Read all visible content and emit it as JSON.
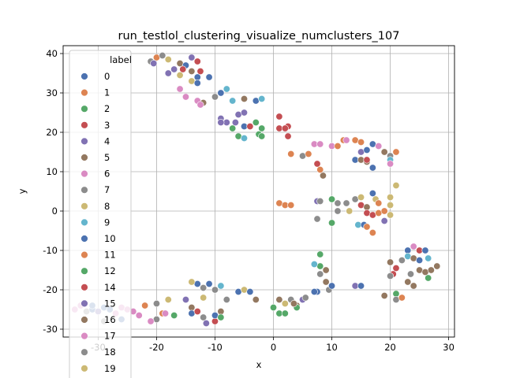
{
  "chart_data": {
    "type": "scatter",
    "title": "run_testlol_clustering_visualize_numclusters_107",
    "xlabel": "x",
    "ylabel": "y",
    "xlim": [
      -36,
      31
    ],
    "ylim": [
      -32,
      42
    ],
    "xticks": [
      -30,
      -20,
      -10,
      0,
      10,
      20,
      30
    ],
    "yticks": [
      -30,
      -20,
      -10,
      0,
      10,
      20,
      30,
      40
    ],
    "grid": true,
    "legend": {
      "title": "label",
      "placement": "upper-left",
      "entries": [
        {
          "label": "0",
          "color": "#4c72b0"
        },
        {
          "label": "1",
          "color": "#dd8452"
        },
        {
          "label": "2",
          "color": "#55a868"
        },
        {
          "label": "3",
          "color": "#c44e52"
        },
        {
          "label": "4",
          "color": "#8172b3"
        },
        {
          "label": "5",
          "color": "#937860"
        },
        {
          "label": "6",
          "color": "#da8bc3"
        },
        {
          "label": "7",
          "color": "#8c8c8c"
        },
        {
          "label": "8",
          "color": "#ccb974"
        },
        {
          "label": "9",
          "color": "#64b5cd"
        },
        {
          "label": "10",
          "color": "#4c72b0"
        },
        {
          "label": "11",
          "color": "#dd8452"
        },
        {
          "label": "12",
          "color": "#55a868"
        },
        {
          "label": "14",
          "color": "#c44e52"
        },
        {
          "label": "15",
          "color": "#8172b3"
        },
        {
          "label": "16",
          "color": "#937860"
        },
        {
          "label": "17",
          "color": "#da8bc3"
        },
        {
          "label": "18",
          "color": "#8c8c8c"
        },
        {
          "label": "19",
          "color": "#ccb974"
        }
      ]
    },
    "points": [
      [
        -20,
        39,
        "#dd8452"
      ],
      [
        -19,
        39.5,
        "#8c8c8c"
      ],
      [
        -21,
        38,
        "#8c8c8c"
      ],
      [
        -18,
        38.5,
        "#ccb974"
      ],
      [
        -16,
        37.5,
        "#937860"
      ],
      [
        -15,
        37,
        "#4c72b0"
      ],
      [
        -13,
        38,
        "#c44e52"
      ],
      [
        -14,
        39,
        "#8172b3"
      ],
      [
        -17,
        36,
        "#8172b3"
      ],
      [
        -15.5,
        36,
        "#c44e52"
      ],
      [
        -14,
        35.5,
        "#937860"
      ],
      [
        -12.5,
        35.5,
        "#c44e52"
      ],
      [
        -16,
        34.5,
        "#ccb974"
      ],
      [
        -13,
        34,
        "#4c72b0"
      ],
      [
        -11,
        34,
        "#4c72b0"
      ],
      [
        -14,
        33,
        "#ccb974"
      ],
      [
        -13,
        32.5,
        "#4c72b0"
      ],
      [
        -20.5,
        37.5,
        "#8172b3"
      ],
      [
        -18,
        35,
        "#8172b3"
      ],
      [
        -16,
        31,
        "#da8bc3"
      ],
      [
        -15,
        29,
        "#da8bc3"
      ],
      [
        -13,
        28,
        "#da8bc3"
      ],
      [
        -12,
        27.5,
        "#937860"
      ],
      [
        -12.5,
        27,
        "#da8bc3"
      ],
      [
        -10,
        29,
        "#8c8c8c"
      ],
      [
        -9,
        30,
        "#4c72b0"
      ],
      [
        -8,
        31,
        "#64b5cd"
      ],
      [
        -7,
        28,
        "#64b5cd"
      ],
      [
        -5,
        28.5,
        "#937860"
      ],
      [
        -3,
        28,
        "#4c72b0"
      ],
      [
        -2,
        28.5,
        "#64b5cd"
      ],
      [
        -9,
        23.5,
        "#8172b3"
      ],
      [
        -8,
        22.5,
        "#8172b3"
      ],
      [
        -9,
        22.5,
        "#8172b3"
      ],
      [
        -6,
        24.5,
        "#8172b3"
      ],
      [
        -5,
        25,
        "#8172b3"
      ],
      [
        -6.5,
        22.5,
        "#8172b3"
      ],
      [
        -7,
        21,
        "#55a868"
      ],
      [
        -5,
        21.5,
        "#4c72b0"
      ],
      [
        -4,
        21.5,
        "#c44e52"
      ],
      [
        -3,
        22.5,
        "#55a868"
      ],
      [
        -2,
        21,
        "#55a868"
      ],
      [
        -6,
        19,
        "#55a868"
      ],
      [
        -5,
        18.5,
        "#64b5cd"
      ],
      [
        -2.5,
        19.5,
        "#55a868"
      ],
      [
        -2,
        19,
        "#55a868"
      ],
      [
        1,
        24,
        "#c44e52"
      ],
      [
        2.5,
        21.5,
        "#c44e52"
      ],
      [
        1,
        21,
        "#c44e52"
      ],
      [
        2,
        21,
        "#c44e52"
      ],
      [
        2.5,
        19,
        "#c44e52"
      ],
      [
        3,
        14.5,
        "#dd8452"
      ],
      [
        5,
        14,
        "#8c8c8c"
      ],
      [
        6,
        14.5,
        "#dd8452"
      ],
      [
        7,
        17,
        "#da8bc3"
      ],
      [
        8,
        17,
        "#da8bc3"
      ],
      [
        7.5,
        12,
        "#c44e52"
      ],
      [
        8,
        10.5,
        "#dd8452"
      ],
      [
        8.5,
        9,
        "#937860"
      ],
      [
        10,
        16.5,
        "#da8bc3"
      ],
      [
        11,
        16.5,
        "#dd8452"
      ],
      [
        12,
        18,
        "#dd8452"
      ],
      [
        12.5,
        18,
        "#da8bc3"
      ],
      [
        14,
        18,
        "#dd8452"
      ],
      [
        15,
        17.5,
        "#dd8452"
      ],
      [
        15,
        15,
        "#8172b3"
      ],
      [
        16,
        15.5,
        "#4c72b0"
      ],
      [
        17,
        17,
        "#4c72b0"
      ],
      [
        18,
        16.5,
        "#da8bc3"
      ],
      [
        19,
        15,
        "#937860"
      ],
      [
        20,
        14,
        "#8c8c8c"
      ],
      [
        21,
        15,
        "#dd8452"
      ],
      [
        20,
        13,
        "#64b5cd"
      ],
      [
        20,
        12,
        "#da8bc3"
      ],
      [
        14,
        13,
        "#4c72b0"
      ],
      [
        15,
        13,
        "#937860"
      ],
      [
        16,
        12.5,
        "#937860"
      ],
      [
        17,
        11,
        "#4c72b0"
      ],
      [
        16,
        13,
        "#c44e52"
      ],
      [
        1,
        2,
        "#dd8452"
      ],
      [
        2,
        1.5,
        "#dd8452"
      ],
      [
        3,
        1.5,
        "#dd8452"
      ],
      [
        7.5,
        2.5,
        "#8172b3"
      ],
      [
        8,
        2.5,
        "#8c8c8c"
      ],
      [
        10,
        3,
        "#55a868"
      ],
      [
        11,
        2,
        "#8c8c8c"
      ],
      [
        12.5,
        2,
        "#8c8c8c"
      ],
      [
        11,
        0,
        "#8c8c8c"
      ],
      [
        13,
        0,
        "#ccb974"
      ],
      [
        14,
        3,
        "#8c8c8c"
      ],
      [
        15,
        3.5,
        "#ccb974"
      ],
      [
        15,
        1.5,
        "#c44e52"
      ],
      [
        16,
        1,
        "#937860"
      ],
      [
        16,
        -0.5,
        "#c44e52"
      ],
      [
        17,
        4.5,
        "#4c72b0"
      ],
      [
        17.5,
        3,
        "#ccb974"
      ],
      [
        18,
        2,
        "#dd8452"
      ],
      [
        17,
        -1,
        "#c44e52"
      ],
      [
        18,
        -0.5,
        "#dd8452"
      ],
      [
        19,
        0,
        "#dd8452"
      ],
      [
        20,
        1.5,
        "#ccb974"
      ],
      [
        20,
        3.5,
        "#ccb974"
      ],
      [
        21,
        6.5,
        "#ccb974"
      ],
      [
        20,
        -1,
        "#ccb974"
      ],
      [
        19,
        -2.5,
        "#8172b3"
      ],
      [
        10,
        -3,
        "#55a868"
      ],
      [
        7.5,
        -2,
        "#8c8c8c"
      ],
      [
        14.5,
        -3.5,
        "#64b5cd"
      ],
      [
        15.5,
        -3.5,
        "#4c72b0"
      ],
      [
        17,
        -5.5,
        "#dd8452"
      ],
      [
        16,
        -4,
        "#dd8452"
      ],
      [
        8,
        -11,
        "#55a868"
      ],
      [
        8,
        -14,
        "#55a868"
      ],
      [
        7,
        -13.5,
        "#64b5cd"
      ],
      [
        9,
        -15,
        "#937860"
      ],
      [
        8,
        -16,
        "#8c8c8c"
      ],
      [
        9,
        -18,
        "#937860"
      ],
      [
        7.5,
        -20.5,
        "#4c72b0"
      ],
      [
        9.5,
        -20,
        "#8c8c8c"
      ],
      [
        10,
        -19,
        "#4c72b0"
      ],
      [
        14,
        -19,
        "#8172b3"
      ],
      [
        15,
        -19,
        "#4c72b0"
      ],
      [
        23,
        -10,
        "#4c72b0"
      ],
      [
        24,
        -9,
        "#da8bc3"
      ],
      [
        25,
        -10,
        "#c44e52"
      ],
      [
        26,
        -10,
        "#4c72b0"
      ],
      [
        23,
        -11.5,
        "#64b5cd"
      ],
      [
        24,
        -12,
        "#937860"
      ],
      [
        25,
        -12.5,
        "#4c72b0"
      ],
      [
        26.5,
        -12,
        "#64b5cd"
      ],
      [
        22,
        -12.5,
        "#8c8c8c"
      ],
      [
        20,
        -13,
        "#937860"
      ],
      [
        21,
        -14.5,
        "#c44e52"
      ],
      [
        20.5,
        -16,
        "#c44e52"
      ],
      [
        20,
        -16.5,
        "#8c8c8c"
      ],
      [
        23.5,
        -16,
        "#8c8c8c"
      ],
      [
        24,
        -19,
        "#937860"
      ],
      [
        25,
        -15,
        "#937860"
      ],
      [
        26,
        -15.5,
        "#937860"
      ],
      [
        27,
        -15,
        "#937860"
      ],
      [
        28,
        -14,
        "#937860"
      ],
      [
        26.5,
        -17,
        "#55a868"
      ],
      [
        23,
        -18,
        "#937860"
      ],
      [
        21,
        -21,
        "#55a868"
      ],
      [
        21,
        -22.5,
        "#8c8c8c"
      ],
      [
        22,
        -22,
        "#dd8452"
      ],
      [
        19,
        -21.5,
        "#937860"
      ],
      [
        -34,
        -25,
        "#da8bc3"
      ],
      [
        -33,
        -24,
        "#da8bc3"
      ],
      [
        -32,
        -25.5,
        "#8c8c8c"
      ],
      [
        -31,
        -25,
        "#4c72b0"
      ],
      [
        -31,
        -24,
        "#4c72b0"
      ],
      [
        -30,
        -25.5,
        "#8172b3"
      ],
      [
        -29,
        -24.5,
        "#4c72b0"
      ],
      [
        -28,
        -25,
        "#4c72b0"
      ],
      [
        -29,
        -28,
        "#8c8c8c"
      ],
      [
        -27,
        -26,
        "#da8bc3"
      ],
      [
        -26,
        -24.5,
        "#da8bc3"
      ],
      [
        -25,
        -25,
        "#da8bc3"
      ],
      [
        -24,
        -25.5,
        "#da8bc3"
      ],
      [
        -23,
        -26.5,
        "#da8bc3"
      ],
      [
        -22,
        -24,
        "#dd8452"
      ],
      [
        -20,
        -23.5,
        "#8c8c8c"
      ],
      [
        -19,
        -26,
        "#dd8452"
      ],
      [
        -20,
        -27.5,
        "#8c8c8c"
      ],
      [
        -18,
        -22.5,
        "#ccb974"
      ],
      [
        -17,
        -26.5,
        "#55a868"
      ],
      [
        -18.5,
        -26,
        "#da8bc3"
      ],
      [
        -21,
        -28,
        "#da8bc3"
      ],
      [
        -26,
        -27.5,
        "#4c72b0"
      ],
      [
        -15,
        -22.5,
        "#8172b3"
      ],
      [
        -14,
        -24.5,
        "#937860"
      ],
      [
        -14,
        -26,
        "#4c72b0"
      ],
      [
        -13,
        -25.5,
        "#c44e52"
      ],
      [
        -12,
        -27,
        "#8c8c8c"
      ],
      [
        -11.5,
        -28.5,
        "#8172b3"
      ],
      [
        -10,
        -28,
        "#c44e52"
      ],
      [
        -10,
        -26.5,
        "#4c72b0"
      ],
      [
        -9,
        -25.5,
        "#937860"
      ],
      [
        -9,
        -27,
        "#55a868"
      ],
      [
        -13,
        -18.5,
        "#4c72b0"
      ],
      [
        -11,
        -18.5,
        "#4c72b0"
      ],
      [
        -12,
        -19.5,
        "#8c8c8c"
      ],
      [
        -10,
        -20,
        "#8c8c8c"
      ],
      [
        -9,
        -19,
        "#64b5cd"
      ],
      [
        -14,
        -18,
        "#ccb974"
      ],
      [
        -12,
        -22,
        "#ccb974"
      ],
      [
        -6,
        -20.5,
        "#4c72b0"
      ],
      [
        -5,
        -20,
        "#ccb974"
      ],
      [
        -4,
        -20.5,
        "#4c72b0"
      ],
      [
        -3,
        -22.5,
        "#937860"
      ],
      [
        -8,
        -22.5,
        "#8c8c8c"
      ],
      [
        0,
        -24.5,
        "#55a868"
      ],
      [
        1,
        -26,
        "#55a868"
      ],
      [
        2,
        -26,
        "#55a868"
      ],
      [
        1,
        -22.5,
        "#937860"
      ],
      [
        2,
        -23.5,
        "#ccb974"
      ],
      [
        3,
        -22.5,
        "#8c8c8c"
      ],
      [
        4,
        -24,
        "#937860"
      ],
      [
        4,
        -24.5,
        "#55a868"
      ],
      [
        3.5,
        -23.5,
        "#937860"
      ],
      [
        5,
        -22.5,
        "#8172b3"
      ],
      [
        7,
        -20.5,
        "#4c72b0"
      ],
      [
        5.5,
        -22,
        "#8c8c8c"
      ]
    ]
  }
}
